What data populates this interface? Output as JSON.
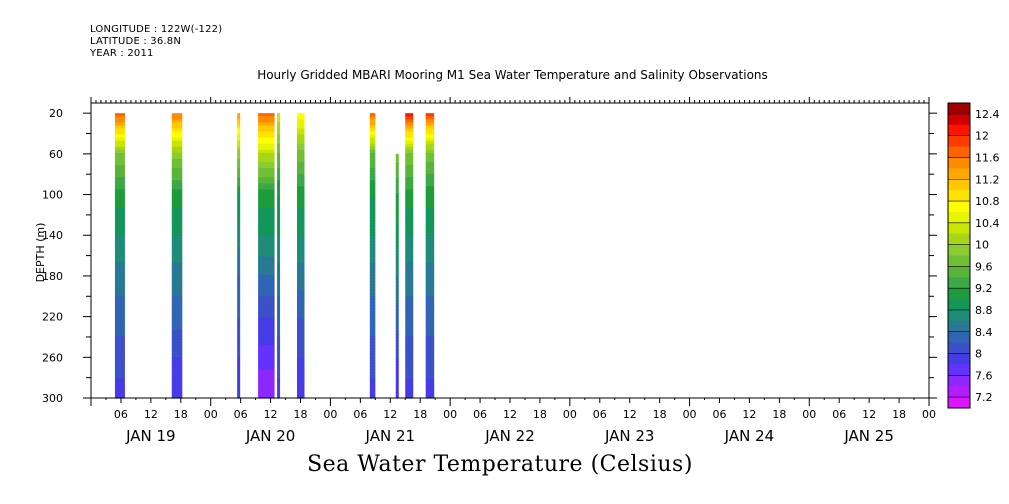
{
  "header": {
    "longitude": "LONGITUDE : 122W(-122)",
    "latitude": "LATITUDE : 36.8N",
    "year": "YEAR : 2011"
  },
  "chart_data": {
    "type": "heatmap",
    "title": "Hourly Gridded MBARI Mooring M1 Sea Water Temperature and Salinity Observations",
    "bottom_title": "Sea Water Temperature (Celsius)",
    "ylabel": "DEPTH (m)",
    "xlabel": "",
    "x_unit": "hours",
    "x_range": [
      0,
      168
    ],
    "x_ticks": [
      6,
      12,
      18,
      24,
      30,
      36,
      42,
      48,
      54,
      60,
      66,
      72,
      78,
      84,
      90,
      96,
      102,
      108,
      114,
      120,
      126,
      132,
      138,
      144,
      150,
      156,
      162,
      168
    ],
    "x_tick_labels": [
      "06",
      "12",
      "18",
      "00",
      "06",
      "12",
      "18",
      "00",
      "06",
      "12",
      "18",
      "00",
      "06",
      "12",
      "18",
      "00",
      "06",
      "12",
      "18",
      "00",
      "06",
      "12",
      "18",
      "00",
      "06",
      "12",
      "18",
      "00"
    ],
    "day_labels": [
      {
        "label": "JAN 19",
        "hour": 12
      },
      {
        "label": "JAN 20",
        "hour": 36
      },
      {
        "label": "JAN 21",
        "hour": 60
      },
      {
        "label": "JAN 22",
        "hour": 84
      },
      {
        "label": "JAN 23",
        "hour": 108
      },
      {
        "label": "JAN 24",
        "hour": 132
      },
      {
        "label": "JAN 25",
        "hour": 156
      }
    ],
    "y_range": [
      10,
      300
    ],
    "y_ticks": [
      20,
      60,
      100,
      140,
      180,
      220,
      260,
      300
    ],
    "y_reversed": true,
    "colorbar": {
      "ticks": [
        12.4,
        12,
        11.6,
        11.2,
        10.8,
        10.4,
        10,
        9.6,
        9.2,
        8.8,
        8.4,
        8,
        7.6,
        7.2
      ],
      "tick_labels": [
        "12.4",
        "12",
        "11.6",
        "11.2",
        "10.8",
        "10.4",
        "10",
        "9.6",
        "9.2",
        "8.8",
        "8.4",
        "8",
        "7.6",
        "7.2"
      ],
      "range": [
        7.0,
        12.6
      ],
      "levels": [
        {
          "lo": 12.4,
          "hi": 12.6,
          "color": "#a00000"
        },
        {
          "lo": 12.2,
          "hi": 12.4,
          "color": "#d00000"
        },
        {
          "lo": 12.0,
          "hi": 12.2,
          "color": "#ff1400"
        },
        {
          "lo": 11.8,
          "hi": 12.0,
          "color": "#ff3c00"
        },
        {
          "lo": 11.6,
          "hi": 11.8,
          "color": "#ff6400"
        },
        {
          "lo": 11.4,
          "hi": 11.6,
          "color": "#ff8c00"
        },
        {
          "lo": 11.2,
          "hi": 11.4,
          "color": "#ffa800"
        },
        {
          "lo": 11.0,
          "hi": 11.2,
          "color": "#ffc800"
        },
        {
          "lo": 10.8,
          "hi": 11.0,
          "color": "#ffe400"
        },
        {
          "lo": 10.6,
          "hi": 10.8,
          "color": "#ffff00"
        },
        {
          "lo": 10.4,
          "hi": 10.6,
          "color": "#e6f500"
        },
        {
          "lo": 10.2,
          "hi": 10.4,
          "color": "#c8e600"
        },
        {
          "lo": 10.0,
          "hi": 10.2,
          "color": "#a6d617"
        },
        {
          "lo": 9.8,
          "hi": 10.0,
          "color": "#8ccc30"
        },
        {
          "lo": 9.6,
          "hi": 9.8,
          "color": "#70c036"
        },
        {
          "lo": 9.4,
          "hi": 9.6,
          "color": "#5ab43c"
        },
        {
          "lo": 9.2,
          "hi": 9.4,
          "color": "#3ca846"
        },
        {
          "lo": 9.0,
          "hi": 9.2,
          "color": "#1e9c3c"
        },
        {
          "lo": 8.8,
          "hi": 9.0,
          "color": "#14965a"
        },
        {
          "lo": 8.6,
          "hi": 8.8,
          "color": "#1e8c78"
        },
        {
          "lo": 8.4,
          "hi": 8.6,
          "color": "#287896"
        },
        {
          "lo": 8.2,
          "hi": 8.4,
          "color": "#3264b4"
        },
        {
          "lo": 8.0,
          "hi": 8.2,
          "color": "#3c50c8"
        },
        {
          "lo": 7.8,
          "hi": 8.0,
          "color": "#463ce6"
        },
        {
          "lo": 7.6,
          "hi": 7.8,
          "color": "#6432ff"
        },
        {
          "lo": 7.4,
          "hi": 7.6,
          "color": "#8c28ff"
        },
        {
          "lo": 7.2,
          "hi": 7.4,
          "color": "#b41eff"
        },
        {
          "lo": 7.0,
          "hi": 7.2,
          "color": "#dc14ff"
        }
      ]
    },
    "segments": [
      {
        "start": 4.8,
        "end": 6.8,
        "top": 20,
        "profile": [
          [
            20,
            11.8
          ],
          [
            60,
            9.8
          ],
          [
            100,
            9.1
          ],
          [
            140,
            8.8
          ],
          [
            180,
            8.5
          ],
          [
            220,
            8.3
          ],
          [
            260,
            8.1
          ],
          [
            300,
            7.9
          ]
        ]
      },
      {
        "start": 16.2,
        "end": 18.3,
        "top": 20,
        "profile": [
          [
            20,
            11.6
          ],
          [
            60,
            9.9
          ],
          [
            100,
            9.1
          ],
          [
            140,
            8.8
          ],
          [
            180,
            8.5
          ],
          [
            220,
            8.3
          ],
          [
            260,
            8.0
          ],
          [
            300,
            7.8
          ]
        ]
      },
      {
        "start": 29.3,
        "end": 29.9,
        "top": 20,
        "profile": [
          [
            20,
            11.4
          ],
          [
            60,
            9.9
          ],
          [
            100,
            9.0
          ],
          [
            140,
            8.7
          ],
          [
            180,
            8.4
          ],
          [
            220,
            8.2
          ],
          [
            260,
            8.0
          ],
          [
            300,
            7.8
          ]
        ]
      },
      {
        "start": 33.5,
        "end": 36.8,
        "top": 20,
        "profile": [
          [
            20,
            11.7
          ],
          [
            60,
            10.2
          ],
          [
            100,
            9.1
          ],
          [
            140,
            8.8
          ],
          [
            180,
            8.4
          ],
          [
            220,
            8.0
          ],
          [
            260,
            7.7
          ],
          [
            300,
            7.4
          ]
        ]
      },
      {
        "start": 37.3,
        "end": 37.9,
        "top": 20,
        "profile": [
          [
            20,
            10.4
          ],
          [
            60,
            9.6
          ],
          [
            100,
            9.0
          ],
          [
            140,
            8.8
          ],
          [
            180,
            8.5
          ],
          [
            220,
            8.3
          ],
          [
            260,
            8.1
          ],
          [
            300,
            7.9
          ]
        ]
      },
      {
        "start": 41.3,
        "end": 42.8,
        "top": 20,
        "profile": [
          [
            20,
            10.8
          ],
          [
            60,
            9.7
          ],
          [
            100,
            9.1
          ],
          [
            140,
            8.8
          ],
          [
            180,
            8.5
          ],
          [
            220,
            8.2
          ],
          [
            260,
            8.0
          ],
          [
            300,
            7.8
          ]
        ]
      },
      {
        "start": 55.9,
        "end": 57.0,
        "top": 20,
        "profile": [
          [
            20,
            11.8
          ],
          [
            60,
            9.6
          ],
          [
            100,
            9.0
          ],
          [
            140,
            8.8
          ],
          [
            180,
            8.5
          ],
          [
            220,
            8.3
          ],
          [
            260,
            8.1
          ],
          [
            300,
            7.9
          ]
        ]
      },
      {
        "start": 61.1,
        "end": 61.7,
        "top": 60,
        "profile": [
          [
            60,
            9.7
          ],
          [
            100,
            9.2
          ],
          [
            140,
            8.9
          ],
          [
            180,
            8.6
          ],
          [
            220,
            8.3
          ],
          [
            260,
            8.0
          ],
          [
            300,
            7.8
          ]
        ]
      },
      {
        "start": 63.0,
        "end": 64.6,
        "top": 20,
        "profile": [
          [
            20,
            12.1
          ],
          [
            60,
            9.8
          ],
          [
            100,
            9.1
          ],
          [
            140,
            8.8
          ],
          [
            180,
            8.5
          ],
          [
            220,
            8.3
          ],
          [
            260,
            8.1
          ],
          [
            300,
            7.9
          ]
        ]
      },
      {
        "start": 67.1,
        "end": 68.8,
        "top": 20,
        "profile": [
          [
            20,
            11.9
          ],
          [
            60,
            9.7
          ],
          [
            100,
            9.1
          ],
          [
            140,
            8.8
          ],
          [
            180,
            8.5
          ],
          [
            220,
            8.3
          ],
          [
            260,
            8.1
          ],
          [
            300,
            7.9
          ]
        ]
      }
    ]
  }
}
